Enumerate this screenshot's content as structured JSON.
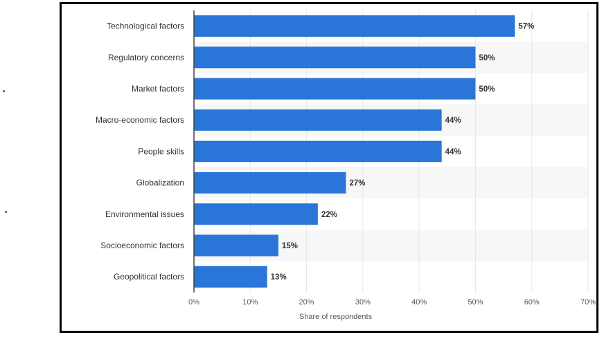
{
  "chart_data": {
    "type": "bar",
    "orientation": "horizontal",
    "categories": [
      "Technological factors",
      "Regulatory concerns",
      "Market factors",
      "Macro-economic factors",
      "People skills",
      "Globalization",
      "Environmental issues",
      "Socioeconomic factors",
      "Geopolitical factors"
    ],
    "values": [
      57,
      50,
      50,
      44,
      44,
      27,
      22,
      15,
      13
    ],
    "data_labels": [
      "57%",
      "50%",
      "50%",
      "44%",
      "44%",
      "27%",
      "22%",
      "15%",
      "13%"
    ],
    "xlabel": "Share of respondents",
    "ylabel": "",
    "xlim": [
      0,
      70
    ],
    "x_ticks": [
      0,
      10,
      20,
      30,
      40,
      50,
      60,
      70
    ],
    "x_tick_labels": [
      "0%",
      "10%",
      "20%",
      "30%",
      "40%",
      "50%",
      "60%",
      "70%"
    ],
    "grid": true,
    "bar_color": "#2a75d8",
    "alt_row_color": "#f7f7f7",
    "grid_color": "#e6e6e6"
  }
}
